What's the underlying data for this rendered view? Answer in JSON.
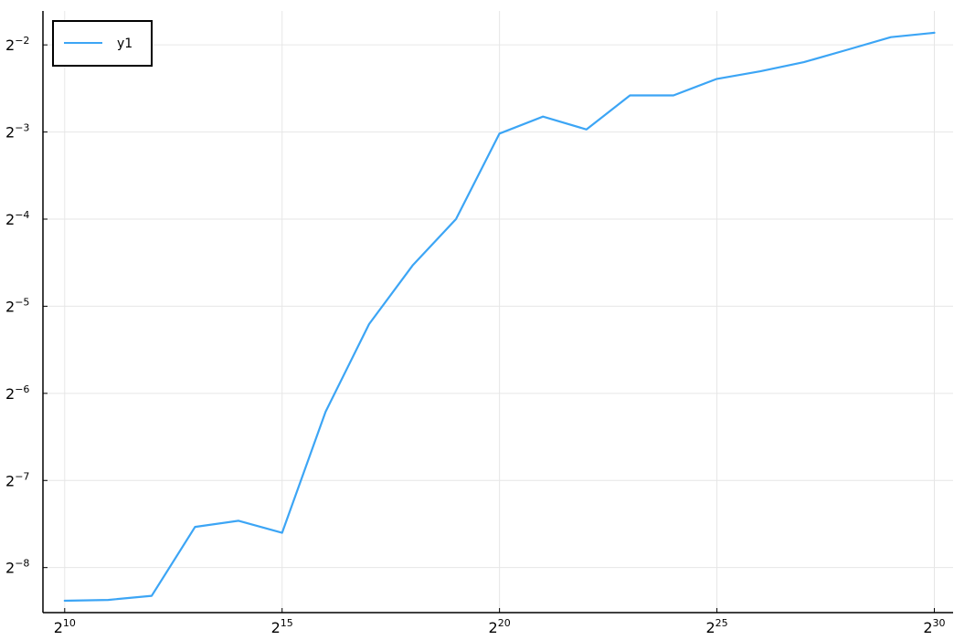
{
  "chart_data": {
    "type": "line",
    "x_scale": "log2",
    "y_scale": "log2",
    "grid": true,
    "legend_position": "top-left",
    "x_ticks": [
      {
        "base": "2",
        "exp": "10",
        "value": 1024
      },
      {
        "base": "2",
        "exp": "15",
        "value": 32768
      },
      {
        "base": "2",
        "exp": "20",
        "value": 1048576
      },
      {
        "base": "2",
        "exp": "25",
        "value": 33554432
      },
      {
        "base": "2",
        "exp": "30",
        "value": 1073741824
      }
    ],
    "y_ticks": [
      {
        "base": "2",
        "exp": "−2",
        "value": 0.25
      },
      {
        "base": "2",
        "exp": "−3",
        "value": 0.125
      },
      {
        "base": "2",
        "exp": "−4",
        "value": 0.0625
      },
      {
        "base": "2",
        "exp": "−5",
        "value": 0.03125
      },
      {
        "base": "2",
        "exp": "−6",
        "value": 0.015625
      },
      {
        "base": "2",
        "exp": "−7",
        "value": 0.0078125
      },
      {
        "base": "2",
        "exp": "−8",
        "value": 0.00390625
      }
    ],
    "xlim": [
      724,
      1448154000
    ],
    "ylim": [
      0.00273,
      0.3275
    ],
    "series": [
      {
        "name": "y1",
        "color": "#3ca5f5",
        "x": [
          1024,
          2048,
          4096,
          8192,
          16384,
          32768,
          65536,
          131072,
          262144,
          524288,
          1048576,
          2097152,
          4194304,
          8388608,
          16777216,
          33554432,
          67108864,
          134217728,
          268435456,
          536870912,
          1073741824
        ],
        "y": [
          0.003,
          0.00302,
          0.00312,
          0.0054,
          0.00567,
          0.00515,
          0.0135,
          0.0271,
          0.0432,
          0.0625,
          0.1235,
          0.1413,
          0.1276,
          0.1672,
          0.1672,
          0.1907,
          0.2026,
          0.2179,
          0.2405,
          0.2659,
          0.2753
        ]
      }
    ]
  }
}
